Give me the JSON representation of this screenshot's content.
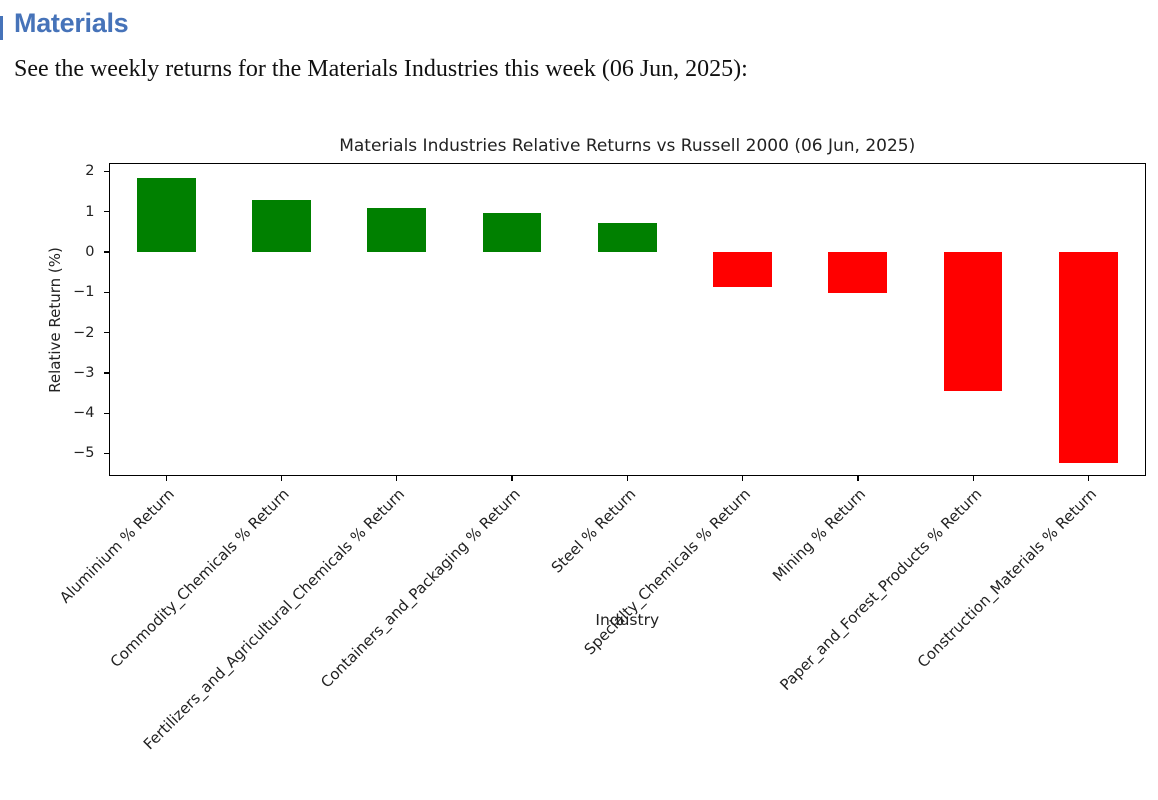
{
  "document": {
    "heading": "Materials",
    "intro": "See the weekly returns for the Materials Industries this week (06 Jun, 2025):"
  },
  "colors": {
    "heading_blue": "#4673b9",
    "axis": "#000000"
  },
  "chart_data": {
    "type": "bar",
    "title": "Materials Industries Relative Returns vs Russell 2000 (06 Jun, 2025)",
    "xlabel": "Industry",
    "ylabel": "Relative Return (%)",
    "categories": [
      "Aluminium % Return",
      "Commodity_Chemicals % Return",
      "Fertilizers_and_Agricultural_Chemicals % Return",
      "Containers_and_Packaging % Return",
      "Steel % Return",
      "Specialty_Chemicals % Return",
      "Mining % Return",
      "Paper_and_Forest_Products % Return",
      "Construction_Materials % Return"
    ],
    "values": [
      1.83,
      1.3,
      1.1,
      0.97,
      0.71,
      -0.87,
      -1.02,
      -3.44,
      -5.24
    ],
    "positive_color": "#008000",
    "negative_color": "#ff0000",
    "ylim": [
      -5.56,
      2.2
    ],
    "yticks": [
      2,
      1,
      0,
      -1,
      -2,
      -3,
      -4,
      -5
    ],
    "grid": false,
    "legend": null,
    "x_tick_rotation_deg": 45,
    "bar_width_fraction": 0.51
  }
}
